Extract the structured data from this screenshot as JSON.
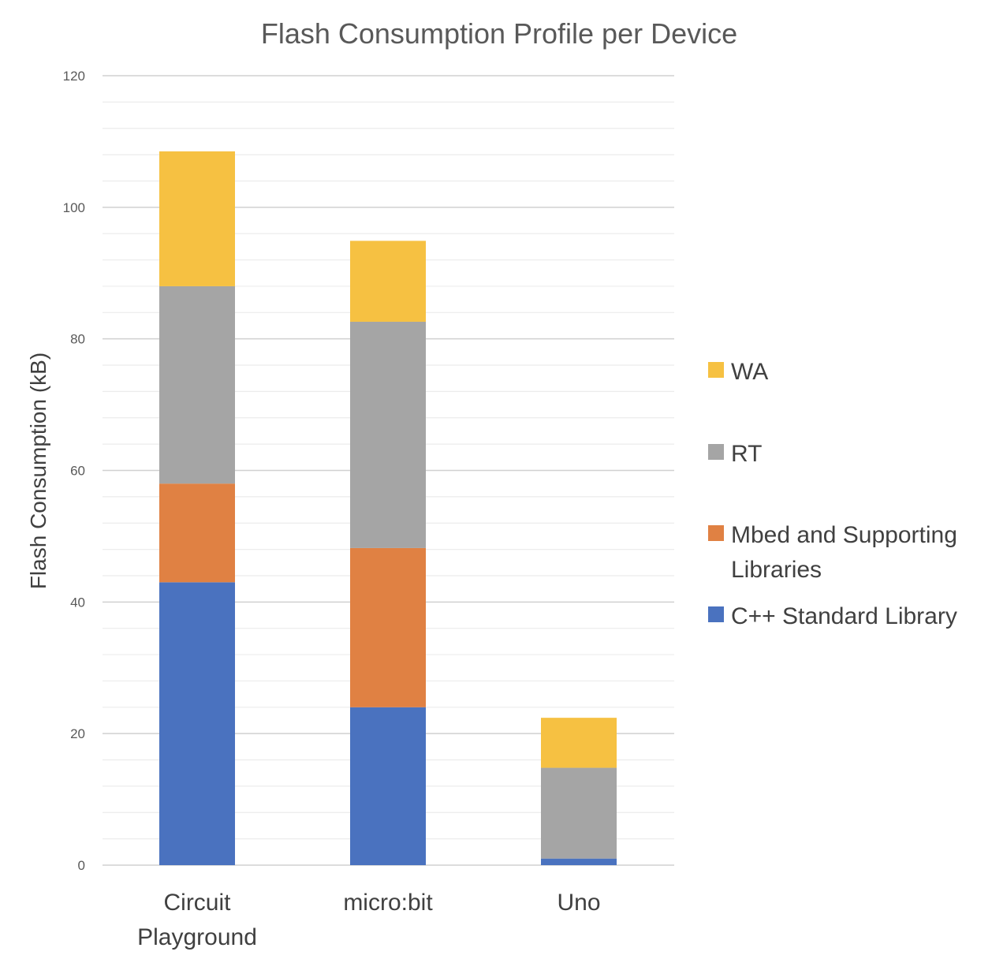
{
  "chart_data": {
    "type": "bar",
    "stacked": true,
    "title": "Flash Consumption Profile per Device",
    "xlabel": "",
    "ylabel": "Flash Consumption (kB)",
    "ylim": [
      0,
      120
    ],
    "yticks": [
      "0",
      "20",
      "40",
      "60",
      "80",
      "100",
      "120"
    ],
    "grid": true,
    "legend_position": "right",
    "categories": [
      "Circuit Playground",
      "micro:bit",
      "Uno"
    ],
    "category_lines": [
      [
        "Circuit",
        "Playground"
      ],
      [
        "micro:bit"
      ],
      [
        "Uno"
      ]
    ],
    "series": [
      {
        "name": "C++ Standard Library",
        "color": "#4472C4",
        "values": [
          43,
          24,
          1
        ]
      },
      {
        "name": "Mbed and Supporting Libraries",
        "color": "#ED7D31",
        "values": [
          15,
          24.2,
          0
        ]
      },
      {
        "name": "RT",
        "color": "#A5A5A5",
        "values": [
          30,
          34.4,
          13.8
        ]
      },
      {
        "name": "WA",
        "color": "#FFC000",
        "values": [
          20.5,
          12.3,
          7.6
        ]
      }
    ],
    "legend": [
      {
        "name": "WA",
        "lines": [
          "WA"
        ],
        "color": "#F6C142"
      },
      {
        "name": "RT",
        "lines": [
          "RT"
        ],
        "color": "#A5A5A5"
      },
      {
        "name": "Mbed and Supporting Libraries",
        "lines": [
          "Mbed and Supporting",
          "Libraries"
        ],
        "color": "#E08143"
      },
      {
        "name": "C++ Standard Library",
        "lines": [
          "C++ Standard Library"
        ],
        "color": "#4A72BF"
      }
    ],
    "bar_colors": {
      "C++ Standard Library": "#4A72BF",
      "Mbed and Supporting Libraries": "#E08143",
      "RT": "#A5A5A5",
      "WA": "#F6C142"
    }
  }
}
